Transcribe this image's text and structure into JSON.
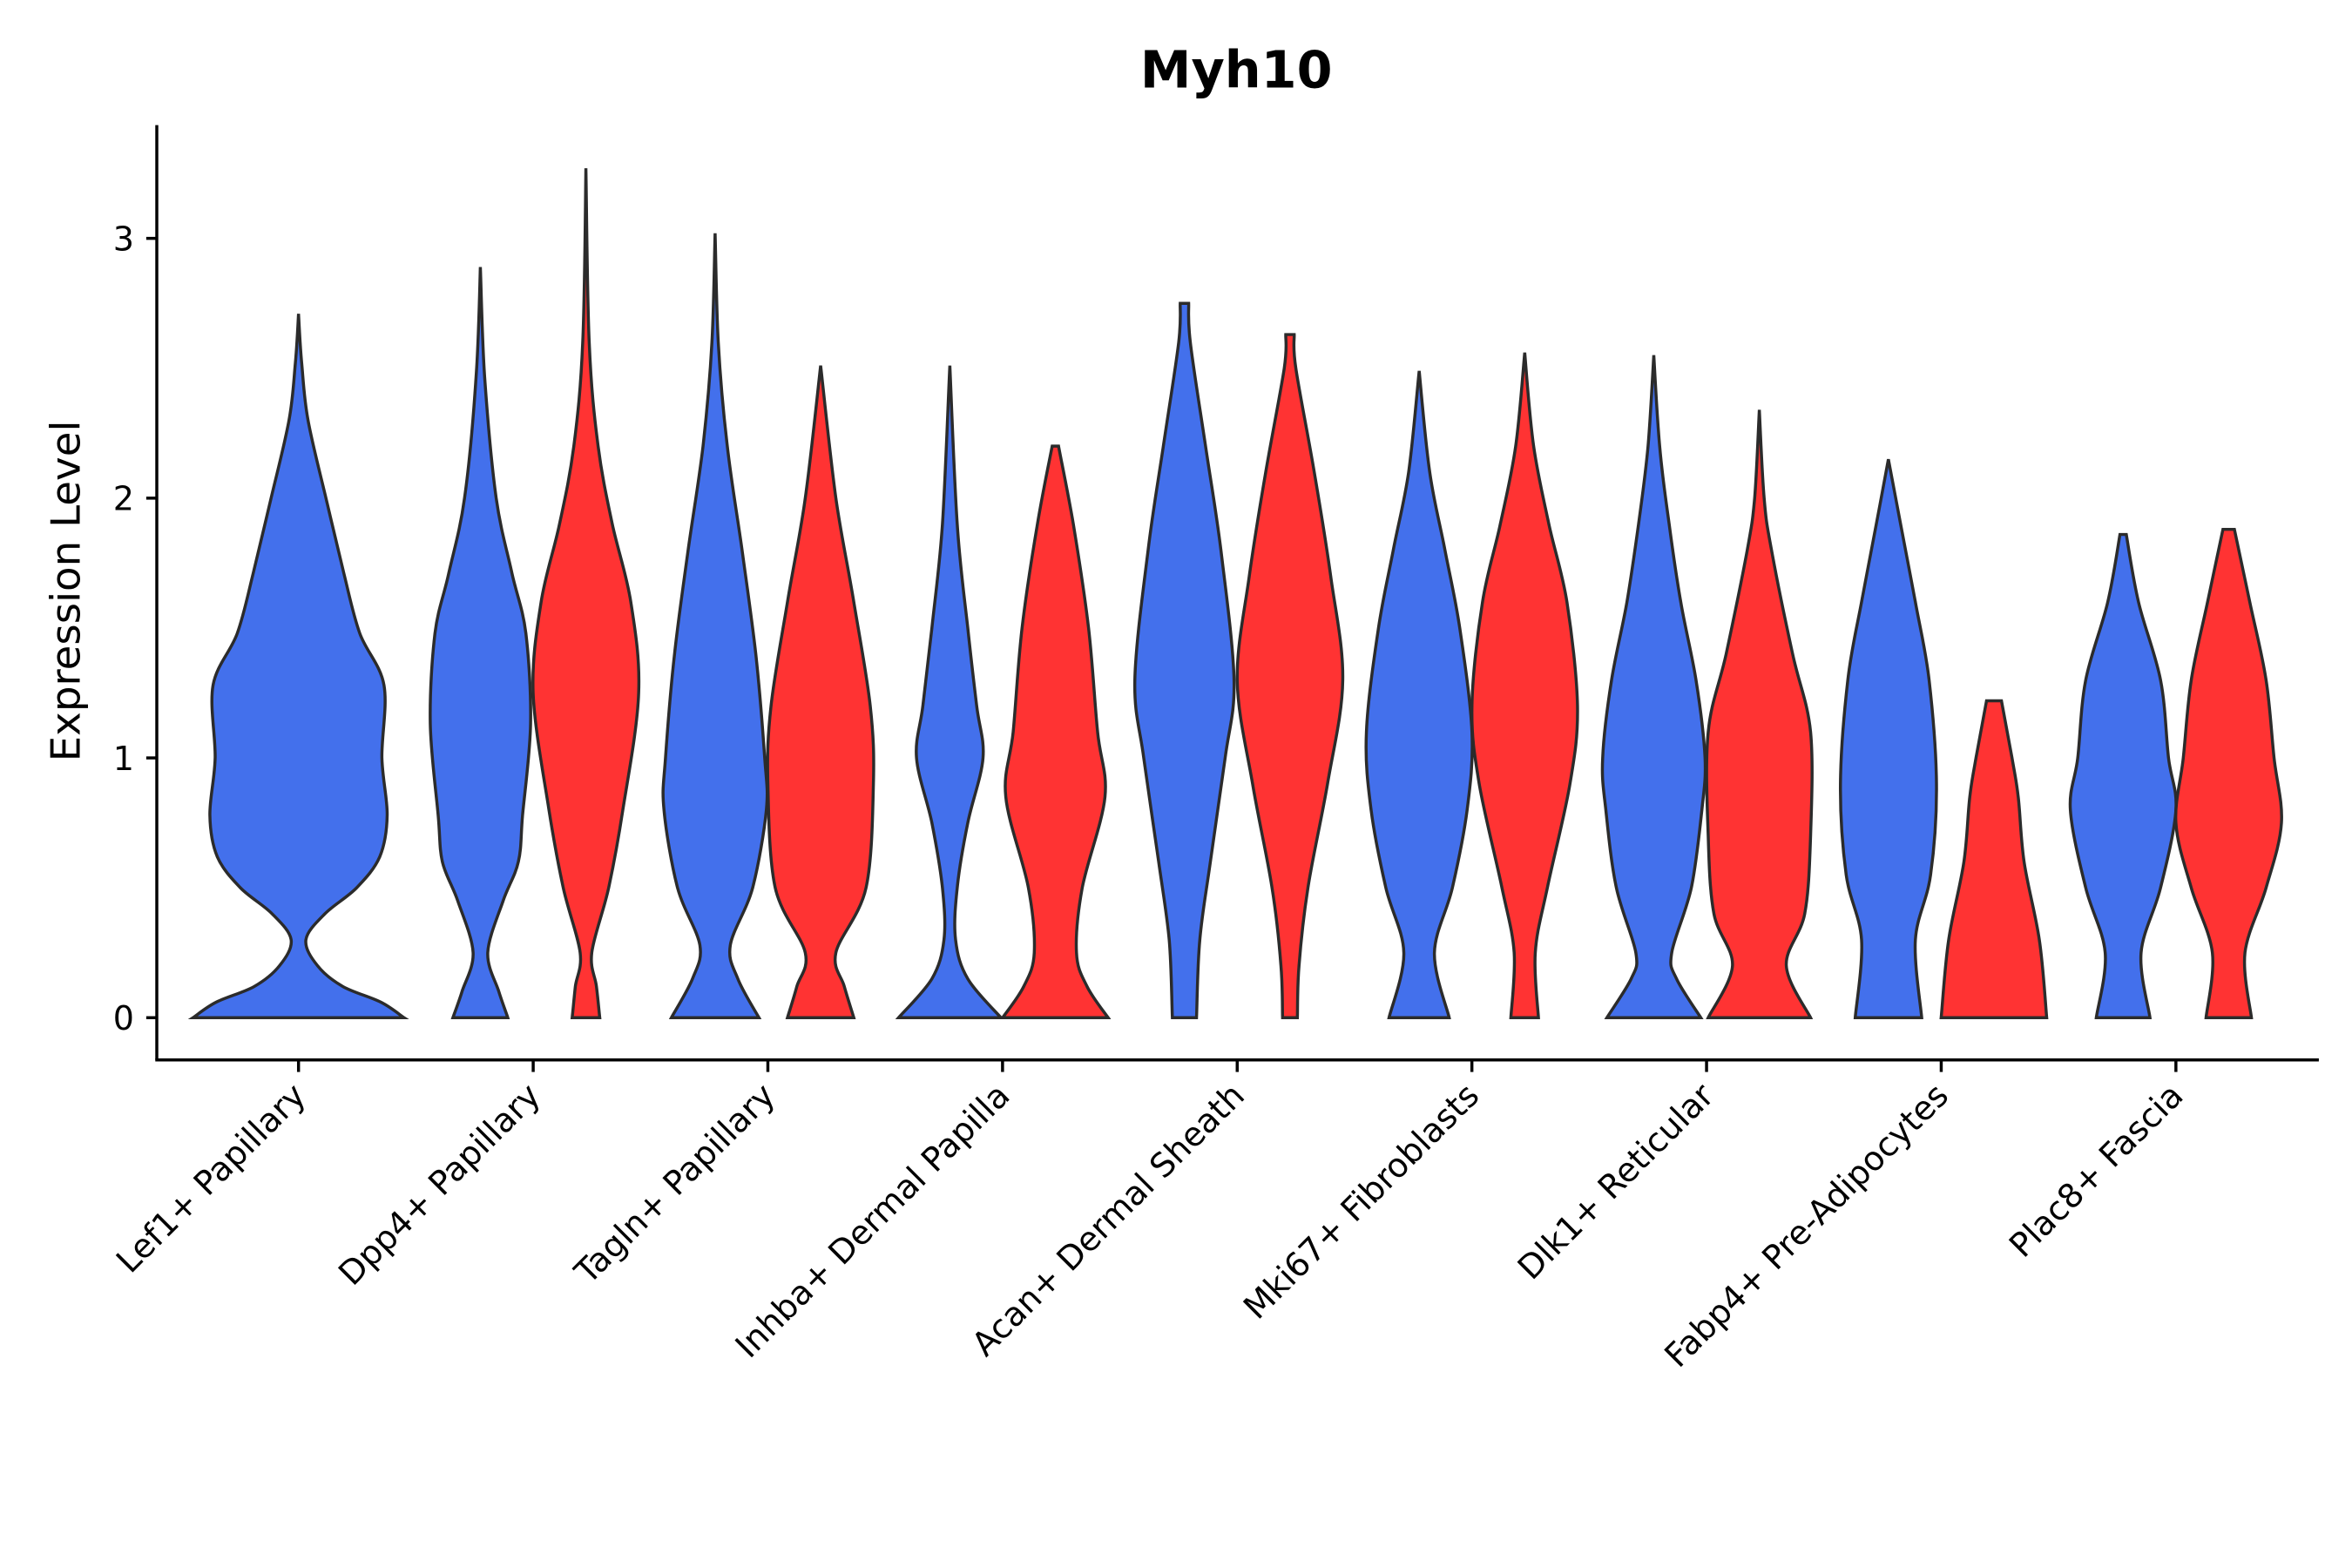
{
  "chart_data": {
    "type": "violin",
    "title": "Myh10",
    "xlabel": "",
    "ylabel": "Expression Level",
    "ylim": [
      -0.17,
      3.44
    ],
    "yticks": [
      "0",
      "1",
      "2",
      "3"
    ],
    "grid": false,
    "legend": "none",
    "colors": {
      "blue": "#4370EC",
      "red": "#FF3333"
    },
    "categories": [
      "Lef1+ Papillary",
      "Dpp4+ Papillary",
      "Tagln+ Papillary",
      "Inhba+ Dermal Papilla",
      "Acan+ Dermal Sheath",
      "Mki67+ Fibroblasts",
      "Dlk1+ Reticular",
      "Fabp4+ Pre-Adipocytes",
      "Plac8+ Fascia"
    ],
    "violins": [
      {
        "category": 0,
        "fill": "blue",
        "single": true,
        "max": 2.71,
        "profile": [
          [
            0,
            1.0
          ],
          [
            0.06,
            0.78
          ],
          [
            0.12,
            0.42
          ],
          [
            0.2,
            0.18
          ],
          [
            0.3,
            0.07
          ],
          [
            0.4,
            0.25
          ],
          [
            0.5,
            0.55
          ],
          [
            0.62,
            0.77
          ],
          [
            0.78,
            0.84
          ],
          [
            1.0,
            0.79
          ],
          [
            1.28,
            0.81
          ],
          [
            1.48,
            0.58
          ],
          [
            1.71,
            0.43
          ],
          [
            2.0,
            0.26
          ],
          [
            2.3,
            0.09
          ],
          [
            2.52,
            0.03
          ],
          [
            2.71,
            0
          ]
        ]
      },
      {
        "category": 1,
        "fill": "blue",
        "max": 2.89,
        "profile": [
          [
            0,
            0.52
          ],
          [
            0.1,
            0.35
          ],
          [
            0.25,
            0.14
          ],
          [
            0.45,
            0.43
          ],
          [
            0.6,
            0.72
          ],
          [
            0.78,
            0.8
          ],
          [
            1.13,
            0.95
          ],
          [
            1.48,
            0.86
          ],
          [
            1.71,
            0.6
          ],
          [
            2.0,
            0.3
          ],
          [
            2.47,
            0.08
          ],
          [
            2.89,
            0
          ]
        ]
      },
      {
        "category": 1,
        "fill": "red",
        "max": 3.27,
        "profile": [
          [
            0,
            0.26
          ],
          [
            0.12,
            0.2
          ],
          [
            0.25,
            0.11
          ],
          [
            0.5,
            0.43
          ],
          [
            0.8,
            0.7
          ],
          [
            1.25,
            1.0
          ],
          [
            1.6,
            0.85
          ],
          [
            1.9,
            0.5
          ],
          [
            2.2,
            0.23
          ],
          [
            2.6,
            0.06
          ],
          [
            3.27,
            0
          ]
        ]
      },
      {
        "category": 2,
        "fill": "blue",
        "max": 3.02,
        "profile": [
          [
            0,
            0.83
          ],
          [
            0.15,
            0.43
          ],
          [
            0.28,
            0.29
          ],
          [
            0.5,
            0.71
          ],
          [
            0.8,
            0.97
          ],
          [
            1.0,
            0.94
          ],
          [
            1.4,
            0.77
          ],
          [
            1.8,
            0.51
          ],
          [
            2.2,
            0.23
          ],
          [
            2.6,
            0.06
          ],
          [
            3.02,
            0
          ]
        ]
      },
      {
        "category": 2,
        "fill": "red",
        "max": 2.51,
        "profile": [
          [
            0,
            0.63
          ],
          [
            0.12,
            0.45
          ],
          [
            0.25,
            0.29
          ],
          [
            0.5,
            0.86
          ],
          [
            0.9,
            1.0
          ],
          [
            1.2,
            0.94
          ],
          [
            1.6,
            0.63
          ],
          [
            2.0,
            0.29
          ],
          [
            2.51,
            0
          ]
        ]
      },
      {
        "category": 3,
        "fill": "blue",
        "max": 2.51,
        "profile": [
          [
            0,
            0.97
          ],
          [
            0.15,
            0.34
          ],
          [
            0.3,
            0.11
          ],
          [
            0.5,
            0.14
          ],
          [
            0.75,
            0.34
          ],
          [
            1.0,
            0.63
          ],
          [
            1.2,
            0.51
          ],
          [
            1.5,
            0.34
          ],
          [
            1.9,
            0.14
          ],
          [
            2.51,
            0
          ]
        ]
      },
      {
        "category": 3,
        "fill": "red",
        "max": 2.2,
        "profile": [
          [
            0,
            1.0
          ],
          [
            0.12,
            0.6
          ],
          [
            0.25,
            0.4
          ],
          [
            0.5,
            0.51
          ],
          [
            0.85,
            0.94
          ],
          [
            1.1,
            0.8
          ],
          [
            1.5,
            0.63
          ],
          [
            1.9,
            0.34
          ],
          [
            2.2,
            0.06
          ]
        ]
      },
      {
        "category": 4,
        "fill": "blue",
        "max": 2.75,
        "profile": [
          [
            0,
            0.23
          ],
          [
            0.3,
            0.29
          ],
          [
            0.6,
            0.49
          ],
          [
            1.0,
            0.77
          ],
          [
            1.3,
            0.94
          ],
          [
            1.8,
            0.69
          ],
          [
            2.2,
            0.4
          ],
          [
            2.6,
            0.11
          ],
          [
            2.75,
            0.08
          ]
        ]
      },
      {
        "category": 4,
        "fill": "red",
        "max": 2.63,
        "profile": [
          [
            0,
            0.14
          ],
          [
            0.2,
            0.17
          ],
          [
            0.5,
            0.34
          ],
          [
            0.9,
            0.71
          ],
          [
            1.3,
            1.0
          ],
          [
            1.7,
            0.77
          ],
          [
            2.1,
            0.46
          ],
          [
            2.5,
            0.11
          ],
          [
            2.63,
            0.08
          ]
        ]
      },
      {
        "category": 5,
        "fill": "blue",
        "max": 2.49,
        "profile": [
          [
            0,
            0.57
          ],
          [
            0.25,
            0.29
          ],
          [
            0.5,
            0.63
          ],
          [
            0.8,
            0.91
          ],
          [
            1.1,
            1.0
          ],
          [
            1.5,
            0.77
          ],
          [
            1.8,
            0.49
          ],
          [
            2.1,
            0.2
          ],
          [
            2.49,
            0
          ]
        ]
      },
      {
        "category": 5,
        "fill": "red",
        "max": 2.56,
        "profile": [
          [
            0,
            0.26
          ],
          [
            0.25,
            0.2
          ],
          [
            0.5,
            0.43
          ],
          [
            0.9,
            0.86
          ],
          [
            1.2,
            1.0
          ],
          [
            1.6,
            0.8
          ],
          [
            1.9,
            0.46
          ],
          [
            2.2,
            0.17
          ],
          [
            2.56,
            0
          ]
        ]
      },
      {
        "category": 6,
        "fill": "blue",
        "max": 2.55,
        "profile": [
          [
            0,
            0.89
          ],
          [
            0.15,
            0.43
          ],
          [
            0.25,
            0.34
          ],
          [
            0.5,
            0.71
          ],
          [
            0.8,
            0.91
          ],
          [
            1.0,
            0.97
          ],
          [
            1.3,
            0.8
          ],
          [
            1.6,
            0.51
          ],
          [
            1.9,
            0.29
          ],
          [
            2.2,
            0.11
          ],
          [
            2.55,
            0
          ]
        ]
      },
      {
        "category": 6,
        "fill": "red",
        "max": 2.34,
        "profile": [
          [
            0,
            0.97
          ],
          [
            0.2,
            0.51
          ],
          [
            0.4,
            0.86
          ],
          [
            0.7,
            0.97
          ],
          [
            1.1,
            0.97
          ],
          [
            1.4,
            0.63
          ],
          [
            1.8,
            0.23
          ],
          [
            2.0,
            0.09
          ],
          [
            2.34,
            0
          ]
        ]
      },
      {
        "category": 7,
        "fill": "blue",
        "max": 2.15,
        "profile": [
          [
            0,
            0.63
          ],
          [
            0.3,
            0.51
          ],
          [
            0.55,
            0.8
          ],
          [
            0.9,
            0.91
          ],
          [
            1.3,
            0.77
          ],
          [
            1.6,
            0.51
          ],
          [
            1.9,
            0.23
          ],
          [
            2.15,
            0
          ]
        ]
      },
      {
        "category": 7,
        "fill": "red",
        "max": 1.22,
        "profile": [
          [
            0,
            1.0
          ],
          [
            0.3,
            0.86
          ],
          [
            0.6,
            0.57
          ],
          [
            0.85,
            0.46
          ],
          [
            1.0,
            0.34
          ],
          [
            1.22,
            0.14
          ]
        ]
      },
      {
        "category": 8,
        "fill": "blue",
        "max": 1.86,
        "profile": [
          [
            0,
            0.51
          ],
          [
            0.25,
            0.34
          ],
          [
            0.5,
            0.71
          ],
          [
            0.8,
            1.0
          ],
          [
            1.0,
            0.86
          ],
          [
            1.3,
            0.71
          ],
          [
            1.6,
            0.29
          ],
          [
            1.86,
            0.06
          ]
        ]
      },
      {
        "category": 8,
        "fill": "red",
        "max": 1.88,
        "profile": [
          [
            0,
            0.43
          ],
          [
            0.25,
            0.31
          ],
          [
            0.5,
            0.71
          ],
          [
            0.75,
            1.0
          ],
          [
            1.0,
            0.86
          ],
          [
            1.3,
            0.71
          ],
          [
            1.6,
            0.4
          ],
          [
            1.88,
            0.11
          ]
        ]
      }
    ]
  }
}
